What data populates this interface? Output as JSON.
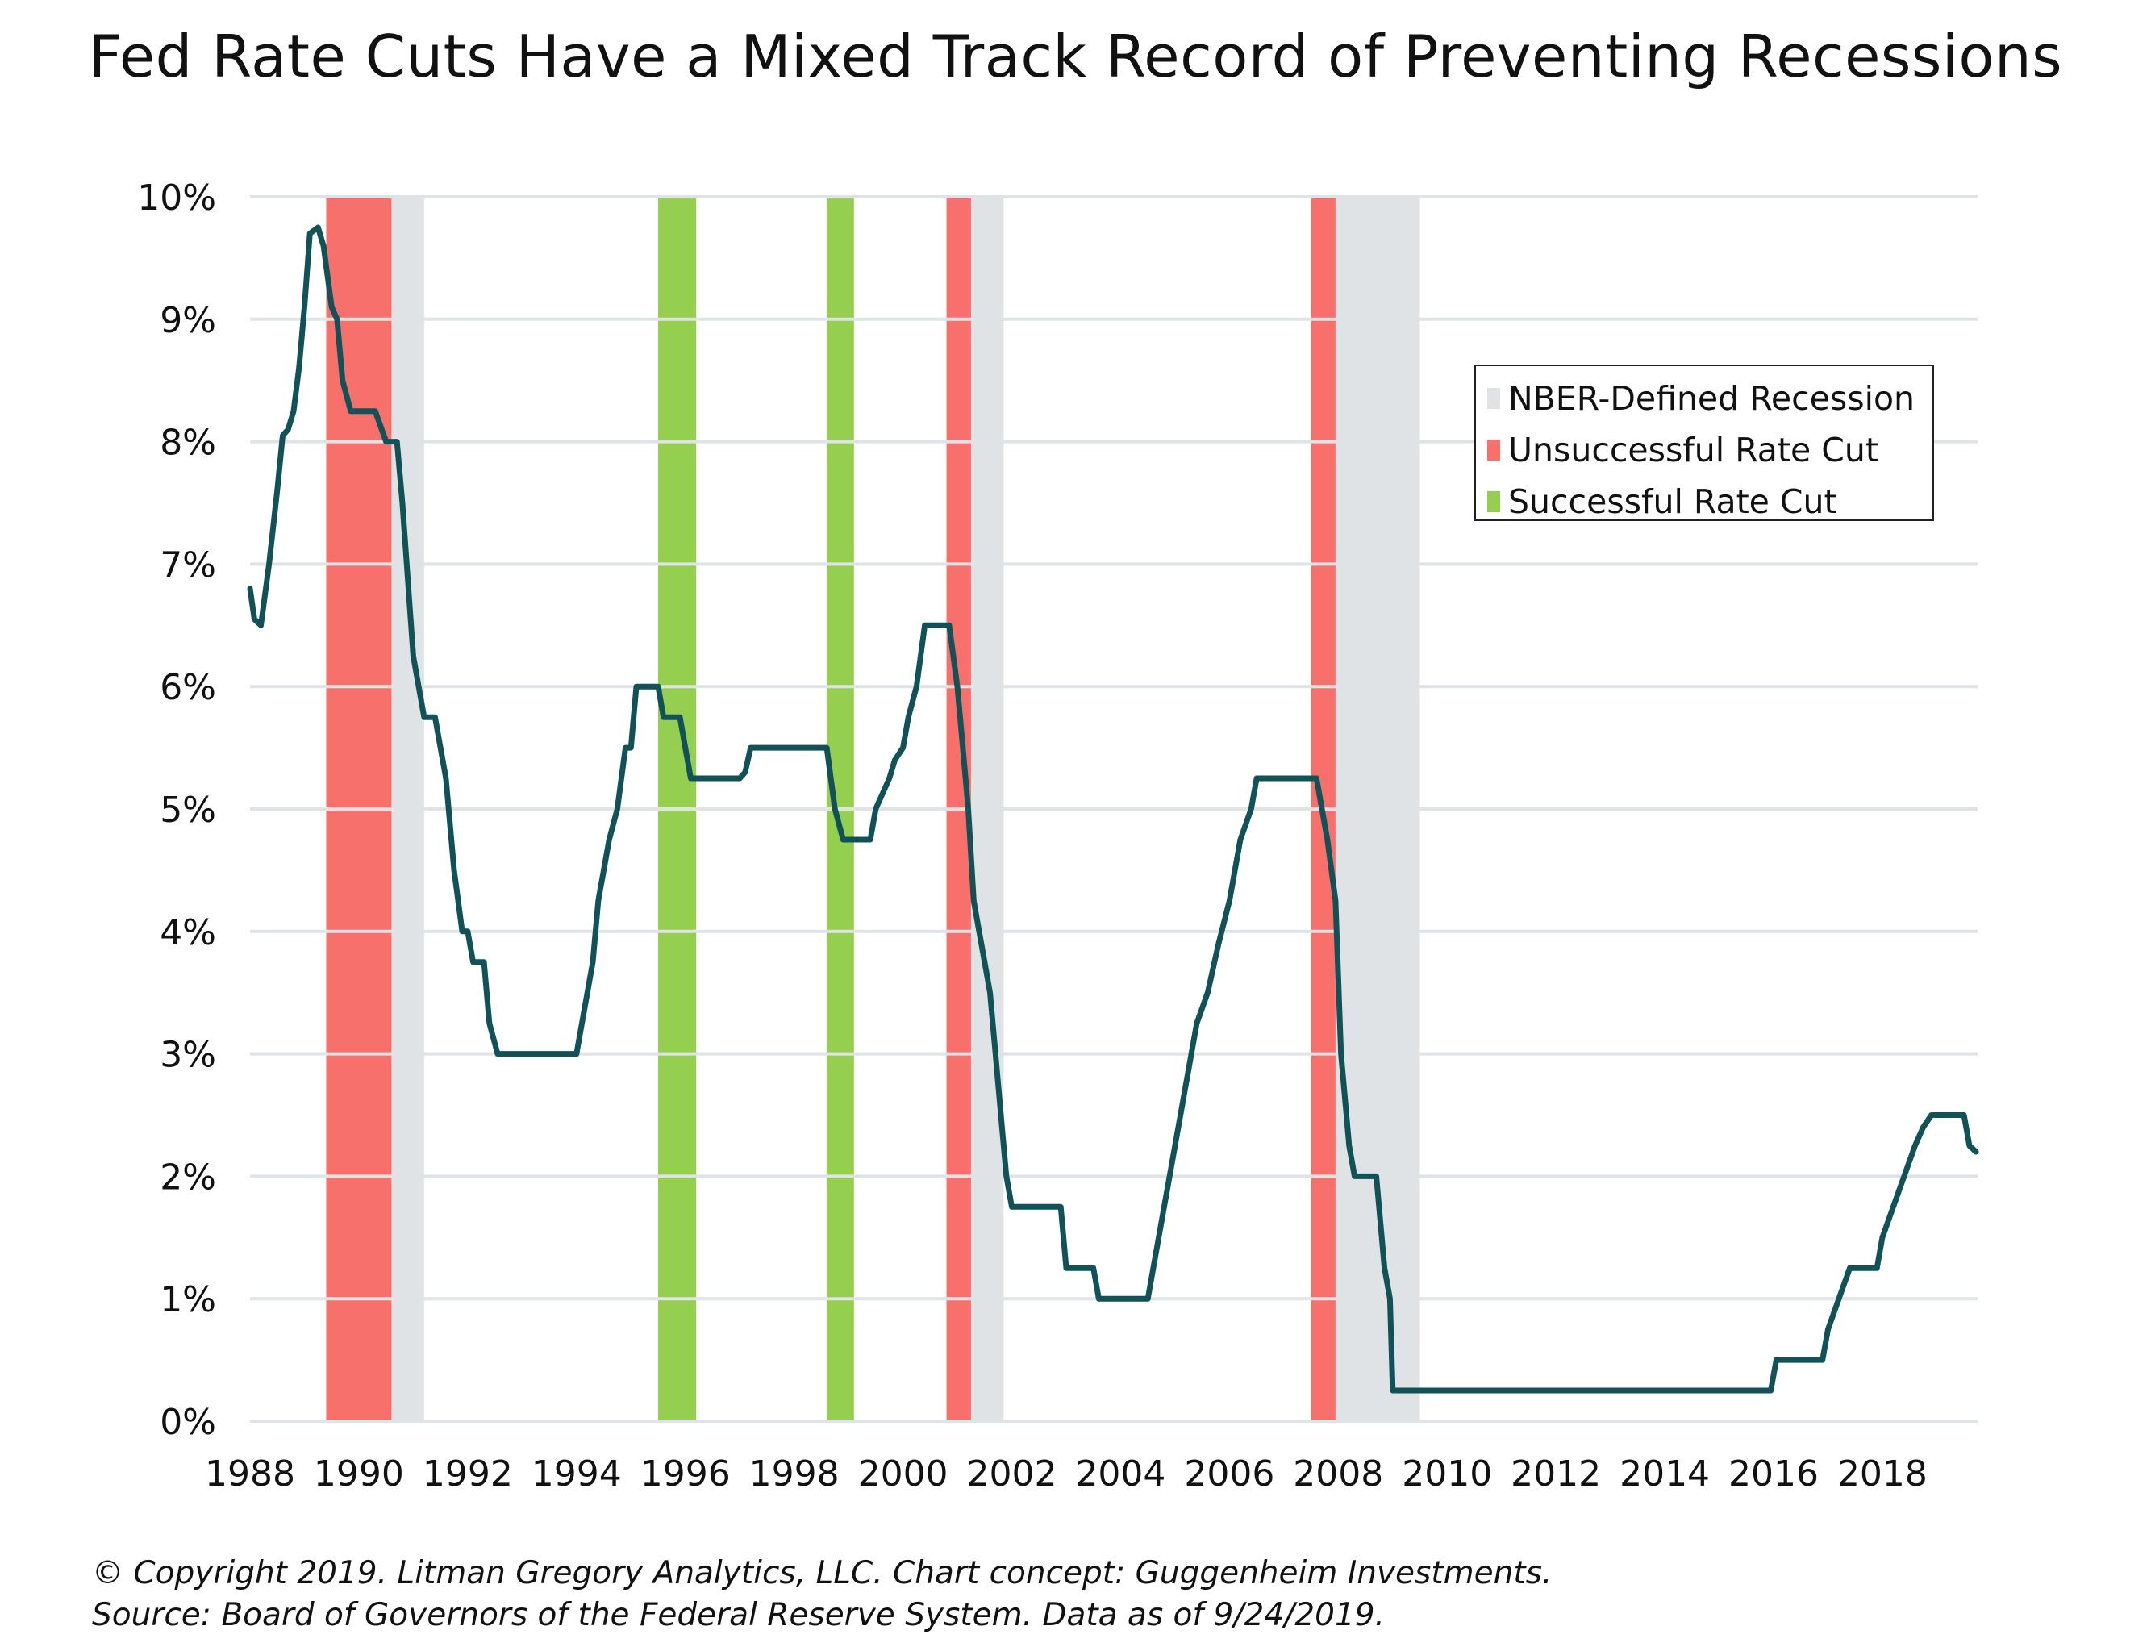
{
  "title": "Fed Rate Cuts Have a Mixed Track Record of Preventing Recessions",
  "footer": {
    "copyright": "© Copyright 2019. Litman Gregory Analytics, LLC. Chart concept: Guggenheim Investments.",
    "source": "Source:  Board of Governors of the Federal Reserve System. Data as of 9/24/2019."
  },
  "colors": {
    "line": "#115158",
    "recession": "#dfe3e5",
    "unsuccessful": "#f7706c",
    "successful": "#95cf4f",
    "grid": "#dfe3e5"
  },
  "legend": {
    "items": [
      {
        "label": "NBER-Defined Recession",
        "color": "#dfe3e5"
      },
      {
        "label": "Unsuccessful Rate Cut",
        "color": "#f7706c"
      },
      {
        "label": "Successful Rate Cut",
        "color": "#95cf4f"
      }
    ]
  },
  "chart_data": {
    "type": "line",
    "title": "Fed Rate Cuts Have a Mixed Track Record of Preventing Recessions",
    "xlabel": "",
    "ylabel": "",
    "xlim": [
      1988.0,
      2019.75
    ],
    "ylim": [
      0,
      10
    ],
    "grid": true,
    "legend_position": "top-right",
    "x_ticks": [
      "1988",
      "1990",
      "1992",
      "1994",
      "1996",
      "1998",
      "2000",
      "2002",
      "2004",
      "2006",
      "2008",
      "2010",
      "2012",
      "2014",
      "2016",
      "2018"
    ],
    "y_ticks": [
      "0%",
      "1%",
      "2%",
      "3%",
      "4%",
      "5%",
      "6%",
      "7%",
      "8%",
      "9%",
      "10%"
    ],
    "shaded_periods": [
      {
        "type": "NBER-Defined Recession",
        "start": 1990.6,
        "end": 1991.2
      },
      {
        "type": "NBER-Defined Recession",
        "start": 2001.2,
        "end": 2001.85
      },
      {
        "type": "NBER-Defined Recession",
        "start": 2007.95,
        "end": 2009.5
      },
      {
        "type": "Unsuccessful Rate Cut",
        "start": 1989.4,
        "end": 1990.6
      },
      {
        "type": "Unsuccessful Rate Cut",
        "start": 2000.8,
        "end": 2001.25
      },
      {
        "type": "Unsuccessful Rate Cut",
        "start": 2007.5,
        "end": 2007.95
      },
      {
        "type": "Successful Rate Cut",
        "start": 1995.5,
        "end": 1996.2
      },
      {
        "type": "Successful Rate Cut",
        "start": 1998.6,
        "end": 1999.1
      }
    ],
    "series": [
      {
        "values": [
          [
            1988.0,
            6.8
          ],
          [
            1988.08,
            6.55
          ],
          [
            1988.2,
            6.5
          ],
          [
            1988.35,
            7.0
          ],
          [
            1988.5,
            7.6
          ],
          [
            1988.6,
            8.05
          ],
          [
            1988.7,
            8.1
          ],
          [
            1988.8,
            8.25
          ],
          [
            1988.9,
            8.6
          ],
          [
            1989.0,
            9.1
          ],
          [
            1989.1,
            9.7
          ],
          [
            1989.25,
            9.75
          ],
          [
            1989.35,
            9.6
          ],
          [
            1989.5,
            9.1
          ],
          [
            1989.6,
            9.0
          ],
          [
            1989.7,
            8.5
          ],
          [
            1989.85,
            8.25
          ],
          [
            1990.0,
            8.25
          ],
          [
            1990.3,
            8.25
          ],
          [
            1990.5,
            8.0
          ],
          [
            1990.7,
            8.0
          ],
          [
            1990.8,
            7.5
          ],
          [
            1991.0,
            6.25
          ],
          [
            1991.1,
            6.0
          ],
          [
            1991.2,
            5.75
          ],
          [
            1991.4,
            5.75
          ],
          [
            1991.6,
            5.25
          ],
          [
            1991.75,
            4.5
          ],
          [
            1991.9,
            4.0
          ],
          [
            1992.0,
            4.0
          ],
          [
            1992.1,
            3.75
          ],
          [
            1992.3,
            3.75
          ],
          [
            1992.4,
            3.25
          ],
          [
            1992.55,
            3.0
          ],
          [
            1993.0,
            3.0
          ],
          [
            1993.5,
            3.0
          ],
          [
            1994.0,
            3.0
          ],
          [
            1994.1,
            3.25
          ],
          [
            1994.3,
            3.75
          ],
          [
            1994.4,
            4.25
          ],
          [
            1994.6,
            4.75
          ],
          [
            1994.75,
            5.0
          ],
          [
            1994.9,
            5.5
          ],
          [
            1995.0,
            5.5
          ],
          [
            1995.1,
            6.0
          ],
          [
            1995.5,
            6.0
          ],
          [
            1995.6,
            5.75
          ],
          [
            1995.9,
            5.75
          ],
          [
            1996.0,
            5.5
          ],
          [
            1996.1,
            5.25
          ],
          [
            1996.5,
            5.25
          ],
          [
            1997.0,
            5.25
          ],
          [
            1997.1,
            5.3
          ],
          [
            1997.2,
            5.5
          ],
          [
            1997.6,
            5.5
          ],
          [
            1998.0,
            5.5
          ],
          [
            1998.6,
            5.5
          ],
          [
            1998.75,
            5.0
          ],
          [
            1998.9,
            4.75
          ],
          [
            1999.0,
            4.75
          ],
          [
            1999.4,
            4.75
          ],
          [
            1999.5,
            5.0
          ],
          [
            1999.75,
            5.25
          ],
          [
            1999.85,
            5.4
          ],
          [
            2000.0,
            5.5
          ],
          [
            2000.1,
            5.75
          ],
          [
            2000.25,
            6.0
          ],
          [
            2000.4,
            6.5
          ],
          [
            2000.6,
            6.5
          ],
          [
            2000.85,
            6.5
          ],
          [
            2001.0,
            6.0
          ],
          [
            2001.1,
            5.5
          ],
          [
            2001.2,
            5.0
          ],
          [
            2001.3,
            4.25
          ],
          [
            2001.4,
            4.0
          ],
          [
            2001.5,
            3.75
          ],
          [
            2001.6,
            3.5
          ],
          [
            2001.7,
            3.0
          ],
          [
            2001.8,
            2.5
          ],
          [
            2001.9,
            2.0
          ],
          [
            2002.0,
            1.75
          ],
          [
            2002.5,
            1.75
          ],
          [
            2002.9,
            1.75
          ],
          [
            2003.0,
            1.25
          ],
          [
            2003.5,
            1.25
          ],
          [
            2003.6,
            1.0
          ],
          [
            2004.0,
            1.0
          ],
          [
            2004.5,
            1.0
          ],
          [
            2004.6,
            1.25
          ],
          [
            2004.8,
            1.75
          ],
          [
            2005.0,
            2.25
          ],
          [
            2005.2,
            2.75
          ],
          [
            2005.4,
            3.25
          ],
          [
            2005.6,
            3.5
          ],
          [
            2005.8,
            3.9
          ],
          [
            2006.0,
            4.25
          ],
          [
            2006.2,
            4.75
          ],
          [
            2006.4,
            5.0
          ],
          [
            2006.5,
            5.25
          ],
          [
            2007.0,
            5.25
          ],
          [
            2007.6,
            5.25
          ],
          [
            2007.8,
            4.75
          ],
          [
            2007.95,
            4.25
          ],
          [
            2008.05,
            3.0
          ],
          [
            2008.2,
            2.25
          ],
          [
            2008.3,
            2.0
          ],
          [
            2008.7,
            2.0
          ],
          [
            2008.85,
            1.25
          ],
          [
            2008.95,
            1.0
          ],
          [
            2009.0,
            0.25
          ],
          [
            2010.0,
            0.25
          ],
          [
            2011.0,
            0.25
          ],
          [
            2012.0,
            0.25
          ],
          [
            2013.0,
            0.25
          ],
          [
            2014.0,
            0.25
          ],
          [
            2015.0,
            0.25
          ],
          [
            2015.95,
            0.25
          ],
          [
            2016.05,
            0.5
          ],
          [
            2016.5,
            0.5
          ],
          [
            2016.9,
            0.5
          ],
          [
            2017.0,
            0.75
          ],
          [
            2017.2,
            1.0
          ],
          [
            2017.4,
            1.25
          ],
          [
            2017.9,
            1.25
          ],
          [
            2018.0,
            1.5
          ],
          [
            2018.2,
            1.75
          ],
          [
            2018.4,
            2.0
          ],
          [
            2018.6,
            2.25
          ],
          [
            2018.75,
            2.4
          ],
          [
            2018.9,
            2.5
          ],
          [
            2019.5,
            2.5
          ],
          [
            2019.6,
            2.25
          ],
          [
            2019.72,
            2.2
          ]
        ]
      }
    ]
  }
}
